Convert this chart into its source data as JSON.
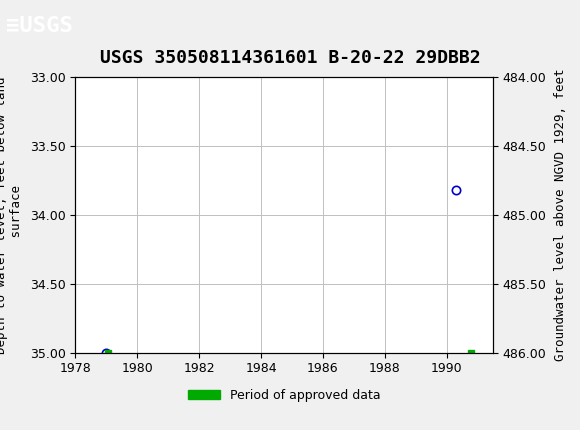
{
  "title": "USGS 350508114361601 B-20-22 29DBB2",
  "xlabel": "",
  "ylabel_left": "Depth to water level, feet below land\n surface",
  "ylabel_right": "Groundwater level above NGVD 1929, feet",
  "ylim_left": [
    33.0,
    35.0
  ],
  "ylim_right": [
    484.0,
    486.0
  ],
  "xlim": [
    1978,
    1991.5
  ],
  "xticks": [
    1978,
    1980,
    1982,
    1984,
    1986,
    1988,
    1990
  ],
  "yticks_left": [
    33.0,
    33.5,
    34.0,
    34.5,
    35.0
  ],
  "yticks_right": [
    484.0,
    484.5,
    485.0,
    485.5,
    486.0
  ],
  "bg_color": "#f0f0f0",
  "plot_bg": "#ffffff",
  "grid_color": "#c0c0c0",
  "header_color": "#006666",
  "data_points_blue": [
    [
      1979.0,
      35.0
    ],
    [
      1990.3,
      33.82
    ]
  ],
  "data_points_green": [
    [
      1979.05,
      35.0
    ],
    [
      1990.8,
      35.0
    ]
  ],
  "legend_label": "Period of approved data",
  "legend_color": "#00aa00",
  "point_color_blue": "#0000cc",
  "point_color_green": "#008800",
  "title_fontsize": 13,
  "label_fontsize": 9,
  "tick_fontsize": 9
}
